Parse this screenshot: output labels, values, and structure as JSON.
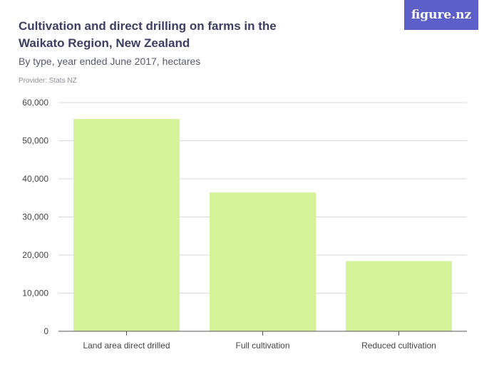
{
  "header": {
    "title": "Cultivation and direct drilling on farms in the Waikato Region, New Zealand",
    "subtitle": "By type, year ended June 2017, hectares",
    "provider": "Provider: Stats NZ"
  },
  "logo": {
    "text": "figure.nz"
  },
  "colors": {
    "bar": "#d4f296",
    "grid": "#d9d9d9",
    "axis": "#555555",
    "text": "#444444",
    "logo_bg": "#5b5fc7"
  },
  "chart_data": {
    "type": "bar",
    "categories": [
      "Land area direct drilled",
      "Full cultivation",
      "Reduced cultivation"
    ],
    "values": [
      55700,
      36400,
      18400
    ],
    "title": "Cultivation and direct drilling on farms in the Waikato Region, New Zealand",
    "subtitle": "By type, year ended June 2017, hectares",
    "xlabel": "",
    "ylabel": "",
    "ylim": [
      0,
      60000
    ],
    "yticks": [
      0,
      10000,
      20000,
      30000,
      40000,
      50000,
      60000
    ],
    "ytick_labels": [
      "0",
      "10,000",
      "20,000",
      "30,000",
      "40,000",
      "50,000",
      "60,000"
    ],
    "grid": true,
    "legend": "none"
  }
}
